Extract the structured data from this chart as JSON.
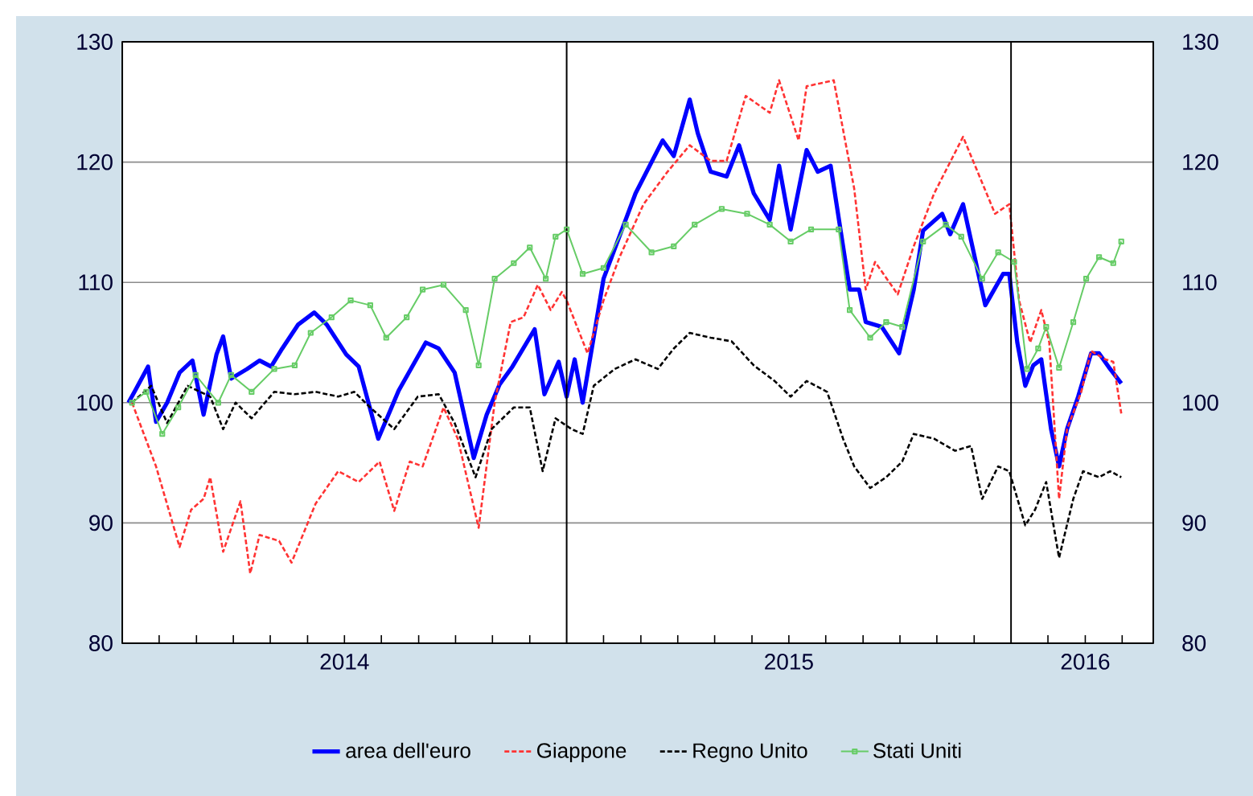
{
  "chart_data": {
    "type": "line",
    "xlim": [
      2014.0,
      2016.32
    ],
    "ylim": [
      80,
      130
    ],
    "yticks": [
      80,
      90,
      100,
      110,
      120,
      130
    ],
    "y2lim": [
      80,
      130
    ],
    "y2ticks": [
      80,
      90,
      100,
      110,
      120,
      130
    ],
    "xticks": [
      {
        "value": 2014.083,
        "label": null
      },
      {
        "value": 2014.167,
        "label": null
      },
      {
        "value": 2014.25,
        "label": null
      },
      {
        "value": 2014.333,
        "label": null
      },
      {
        "value": 2014.417,
        "label": null
      },
      {
        "value": 2014.5,
        "label": "2014"
      },
      {
        "value": 2014.583,
        "label": null
      },
      {
        "value": 2014.667,
        "label": null
      },
      {
        "value": 2014.75,
        "label": null
      },
      {
        "value": 2014.833,
        "label": null
      },
      {
        "value": 2014.917,
        "label": null
      },
      {
        "value": 2015.083,
        "label": null
      },
      {
        "value": 2015.167,
        "label": null
      },
      {
        "value": 2015.25,
        "label": null
      },
      {
        "value": 2015.333,
        "label": null
      },
      {
        "value": 2015.417,
        "label": null
      },
      {
        "value": 2015.5,
        "label": "2015"
      },
      {
        "value": 2015.583,
        "label": null
      },
      {
        "value": 2015.667,
        "label": null
      },
      {
        "value": 2015.75,
        "label": null
      },
      {
        "value": 2015.833,
        "label": null
      },
      {
        "value": 2015.917,
        "label": null
      },
      {
        "value": 2016.083,
        "label": null
      },
      {
        "value": 2016.167,
        "label": "2016"
      },
      {
        "value": 2016.25,
        "label": null
      }
    ],
    "grid": "y",
    "legend": "bottom",
    "ref_lines": [
      {
        "axis": "x",
        "value": 2015,
        "color": "#000000"
      },
      {
        "axis": "x",
        "value": 2016,
        "color": "#000000"
      }
    ],
    "series": [
      {
        "name": "area dell'euro",
        "color": "#0000ff",
        "line_style": "solid",
        "marker": "none",
        "x": [
          2014.014,
          2014.029,
          2014.058,
          2014.076,
          2014.101,
          2014.129,
          2014.158,
          2014.183,
          2014.212,
          2014.227,
          2014.245,
          2014.281,
          2014.309,
          2014.335,
          2014.36,
          2014.396,
          2014.432,
          2014.46,
          2014.504,
          2014.532,
          2014.576,
          2014.622,
          2014.683,
          2014.712,
          2014.748,
          2014.791,
          2014.82,
          2014.849,
          2014.878,
          2014.928,
          2014.95,
          2014.982,
          2015.0,
          2015.018,
          2015.036,
          2015.083,
          2015.155,
          2015.216,
          2015.241,
          2015.277,
          2015.295,
          2015.324,
          2015.36,
          2015.388,
          2015.421,
          2015.457,
          2015.478,
          2015.504,
          2015.54,
          2015.565,
          2015.594,
          2015.637,
          2015.658,
          2015.673,
          2015.709,
          2015.748,
          2015.781,
          2015.802,
          2015.845,
          2015.863,
          2015.892,
          2015.942,
          2015.982,
          2015.996,
          2016.014,
          2016.032,
          2016.05,
          2016.068,
          2016.09,
          2016.108,
          2016.126,
          2016.151,
          2016.18,
          2016.198,
          2016.223,
          2016.248
        ],
        "values": [
          100,
          101,
          103,
          98.4,
          100,
          102.5,
          103.5,
          99,
          104,
          105.5,
          102,
          102.8,
          103.5,
          103,
          104.5,
          106.5,
          107.5,
          106.5,
          104,
          103,
          97,
          101,
          105,
          104.5,
          102.5,
          95.4,
          99,
          101.5,
          103,
          106.1,
          100.7,
          103.4,
          100.5,
          103.6,
          100,
          110.3,
          117.4,
          121.8,
          120.5,
          125.2,
          122.4,
          119.2,
          118.8,
          121.4,
          117.4,
          115.2,
          119.7,
          114.4,
          121,
          119.2,
          119.7,
          109.4,
          109.4,
          106.7,
          106.3,
          104.1,
          109.4,
          114.3,
          115.7,
          114,
          116.5,
          108.1,
          110.7,
          110.7,
          105,
          101.4,
          103.1,
          103.6,
          97.8,
          94.7,
          97.8,
          100.5,
          104.1,
          104.1,
          102.8,
          101.6
        ]
      },
      {
        "name": "Giappone",
        "color": "#ff3333",
        "line_style": "dashed",
        "marker": "none",
        "x": [
          2014.022,
          2014.076,
          2014.129,
          2014.155,
          2014.183,
          2014.198,
          2014.227,
          2014.266,
          2014.288,
          2014.309,
          2014.353,
          2014.381,
          2014.435,
          2014.486,
          2014.532,
          2014.579,
          2014.612,
          2014.647,
          2014.676,
          2014.723,
          2014.755,
          2014.802,
          2014.838,
          2014.874,
          2014.903,
          2014.935,
          2014.964,
          2014.989,
          2015.0,
          2015.047,
          2015.083,
          2015.119,
          2015.173,
          2015.227,
          2015.277,
          2015.324,
          2015.36,
          2015.403,
          2015.457,
          2015.478,
          2015.522,
          2015.54,
          2015.601,
          2015.647,
          2015.673,
          2015.694,
          2015.745,
          2015.781,
          2015.827,
          2015.892,
          2015.964,
          2015.996,
          2016.018,
          2016.043,
          2016.068,
          2016.086,
          2016.108,
          2016.126,
          2016.158,
          2016.18,
          2016.212,
          2016.23,
          2016.248
        ],
        "values": [
          100,
          94.7,
          88,
          91.1,
          92,
          93.8,
          87.6,
          91.8,
          85.8,
          89,
          88.5,
          86.7,
          91.6,
          94.3,
          93.4,
          95.1,
          91,
          95.1,
          94.7,
          99.6,
          97,
          89.6,
          100,
          106.7,
          107.1,
          109.8,
          107.7,
          109.2,
          108.5,
          104.1,
          108.5,
          112.1,
          116.5,
          119.2,
          121.4,
          120.1,
          120.1,
          125.5,
          124.1,
          126.8,
          121.8,
          126.3,
          126.8,
          117.8,
          109.4,
          111.7,
          109,
          113,
          117.4,
          122.1,
          115.7,
          116.5,
          108.5,
          105,
          107.7,
          105,
          92,
          97.8,
          100.9,
          104.3,
          103.6,
          103.4,
          99.1
        ]
      },
      {
        "name": "Regno Unito",
        "color": "#000000",
        "line_style": "dashed",
        "marker": "none",
        "x": [
          2014.022,
          2014.065,
          2014.101,
          2014.147,
          2014.198,
          2014.227,
          2014.255,
          2014.291,
          2014.342,
          2014.388,
          2014.435,
          2014.486,
          2014.522,
          2014.558,
          2014.612,
          2014.665,
          2014.712,
          2014.748,
          2014.795,
          2014.831,
          2014.881,
          2014.917,
          2014.946,
          2014.975,
          2015.011,
          2015.036,
          2015.061,
          2015.108,
          2015.155,
          2015.205,
          2015.241,
          2015.277,
          2015.324,
          2015.371,
          2015.421,
          2015.468,
          2015.504,
          2015.54,
          2015.586,
          2015.622,
          2015.647,
          2015.683,
          2015.719,
          2015.755,
          2015.781,
          2015.827,
          2015.874,
          2015.91,
          2015.935,
          2015.971,
          2015.996,
          2016.032,
          2016.054,
          2016.079,
          2016.108,
          2016.14,
          2016.162,
          2016.198,
          2016.223,
          2016.248
        ],
        "values": [
          100,
          101.4,
          98.3,
          101.4,
          100.5,
          97.8,
          100,
          98.7,
          100.9,
          100.7,
          100.9,
          100.5,
          100.9,
          99.6,
          97.8,
          100.5,
          100.7,
          98.3,
          93.8,
          97.8,
          99.6,
          99.6,
          94.3,
          98.7,
          97.8,
          97.4,
          101.4,
          102.8,
          103.6,
          102.8,
          104.5,
          105.8,
          105.4,
          105.1,
          103.1,
          101.8,
          100.5,
          101.8,
          100.9,
          97,
          94.7,
          92.9,
          93.8,
          95.1,
          97.4,
          97,
          96,
          96.4,
          92,
          94.7,
          94.3,
          89.8,
          91.1,
          93.4,
          87.1,
          92,
          94.3,
          93.8,
          94.3,
          93.8
        ]
      },
      {
        "name": "Stati Uniti",
        "color": "#66cc66",
        "line_style": "solid",
        "marker": "square",
        "x": [
          2014.022,
          2014.054,
          2014.09,
          2014.126,
          2014.165,
          2014.216,
          2014.245,
          2014.291,
          2014.342,
          2014.388,
          2014.424,
          2014.471,
          2014.514,
          2014.558,
          2014.594,
          2014.64,
          2014.676,
          2014.723,
          2014.773,
          2014.802,
          2014.838,
          2014.881,
          2014.917,
          2014.953,
          2014.975,
          2015.0,
          2015.036,
          2015.083,
          2015.133,
          2015.191,
          2015.241,
          2015.288,
          2015.349,
          2015.406,
          2015.457,
          2015.504,
          2015.55,
          2015.612,
          2015.637,
          2015.683,
          2015.719,
          2015.755,
          2015.802,
          2015.853,
          2015.888,
          2015.935,
          2015.971,
          2016.007,
          2016.036,
          2016.061,
          2016.079,
          2016.108,
          2016.14,
          2016.169,
          2016.198,
          2016.23,
          2016.248
        ],
        "values": [
          100,
          100.9,
          97.4,
          99.6,
          102.3,
          100,
          102.3,
          100.9,
          102.8,
          103.1,
          105.8,
          107.1,
          108.5,
          108.1,
          105.4,
          107.1,
          109.4,
          109.8,
          107.7,
          103.1,
          110.3,
          111.6,
          112.9,
          110.3,
          113.8,
          114.4,
          110.7,
          111.2,
          114.8,
          112.5,
          113,
          114.8,
          116.1,
          115.7,
          114.8,
          113.4,
          114.4,
          114.4,
          107.7,
          105.4,
          106.7,
          106.3,
          113.4,
          114.8,
          113.8,
          110.3,
          112.5,
          111.7,
          102.8,
          104.5,
          106.3,
          102.9,
          106.7,
          110.3,
          112.1,
          111.6,
          113.4
        ]
      }
    ]
  }
}
